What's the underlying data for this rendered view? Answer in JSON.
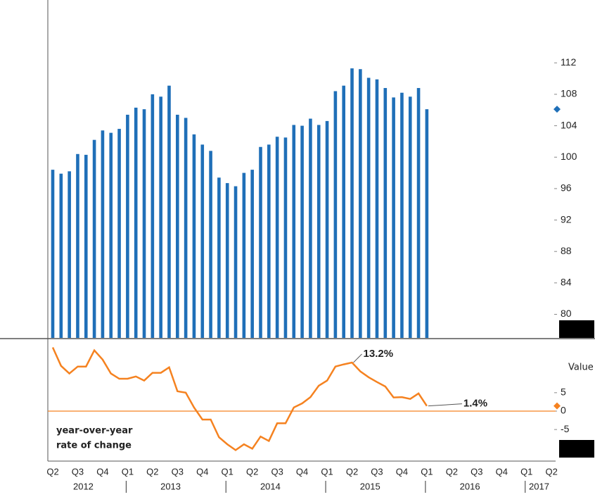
{
  "chart_data": [
    {
      "type": "bar",
      "color": "#1f6fb8",
      "categories": [
        null,
        null,
        null,
        null,
        null,
        null,
        null,
        null,
        null,
        null,
        null,
        null,
        null,
        null,
        null,
        null,
        null,
        null,
        null,
        null,
        null,
        null,
        null,
        null,
        null,
        null,
        null,
        null,
        null,
        null,
        null,
        null,
        null,
        null,
        null,
        null,
        null,
        null,
        null,
        null,
        null,
        null,
        null,
        null,
        null,
        null
      ],
      "values": [
        98.4,
        97.9,
        98.2,
        100.4,
        100.3,
        102.2,
        103.4,
        103.1,
        103.6,
        105.4,
        106.3,
        106.1,
        108.0,
        107.7,
        109.1,
        105.4,
        105.0,
        102.9,
        101.6,
        100.8,
        97.4,
        96.7,
        96.3,
        98.0,
        98.4,
        101.3,
        101.6,
        102.6,
        102.5,
        104.1,
        104.0,
        104.9,
        104.1,
        104.6,
        108.4,
        109.1,
        111.3,
        111.2,
        110.1,
        109.9,
        108.8,
        107.6,
        108.2,
        107.7,
        108.8,
        106.1
      ],
      "ylim": [
        77,
        120
      ],
      "yticks": [
        80,
        84,
        88,
        92,
        96,
        100,
        104,
        108,
        112
      ]
    },
    {
      "type": "line",
      "y_label": "Value",
      "annotation": [
        "year-over-year",
        "rate of change"
      ],
      "series": [
        {
          "name": "year-over-year rate of change",
          "color": "#f58220",
          "values": [
            17.3,
            12.3,
            10.2,
            12.1,
            12.1,
            16.5,
            14.0,
            10.2,
            8.8,
            8.8,
            9.4,
            8.3,
            10.4,
            10.4,
            11.9,
            5.4,
            5.0,
            1.0,
            -2.3,
            -2.3,
            -7.1,
            -9.0,
            -10.6,
            -9.0,
            -10.2,
            -6.9,
            -8.1,
            -3.3,
            -3.3,
            1.0,
            2.1,
            3.8,
            6.9,
            8.3,
            12.1,
            12.7,
            13.2,
            10.8,
            9.2,
            7.9,
            6.7,
            3.7,
            3.8,
            3.3,
            4.8,
            1.4
          ],
          "value_labels": [
            null,
            null,
            null,
            null,
            null,
            null,
            null,
            null,
            null,
            null,
            null,
            null,
            null,
            null,
            null,
            null,
            null,
            null,
            null,
            null,
            null,
            null,
            null,
            null,
            null,
            null,
            null,
            null,
            null,
            null,
            null,
            null,
            null,
            null,
            null,
            null,
            "13.2%",
            null,
            null,
            null,
            null,
            null,
            null,
            null,
            null,
            "1.4%"
          ]
        }
      ],
      "reference_line": 0,
      "ylim": [
        -13,
        19.5
      ],
      "yticks": [
        -5,
        0,
        5
      ],
      "quarter_labels": [
        "Q2",
        "Q3",
        "Q4",
        "Q1",
        "Q2",
        "Q3",
        "Q4",
        "Q1",
        "Q2",
        "Q3",
        "Q4",
        "Q1",
        "Q2",
        "Q3",
        "Q4",
        "Q1",
        "Q2",
        "Q3",
        "Q4",
        "Q1",
        "Q2"
      ],
      "year_labels": [
        "2012",
        "2013",
        "2014",
        "2015",
        "2016",
        "2017"
      ]
    }
  ]
}
